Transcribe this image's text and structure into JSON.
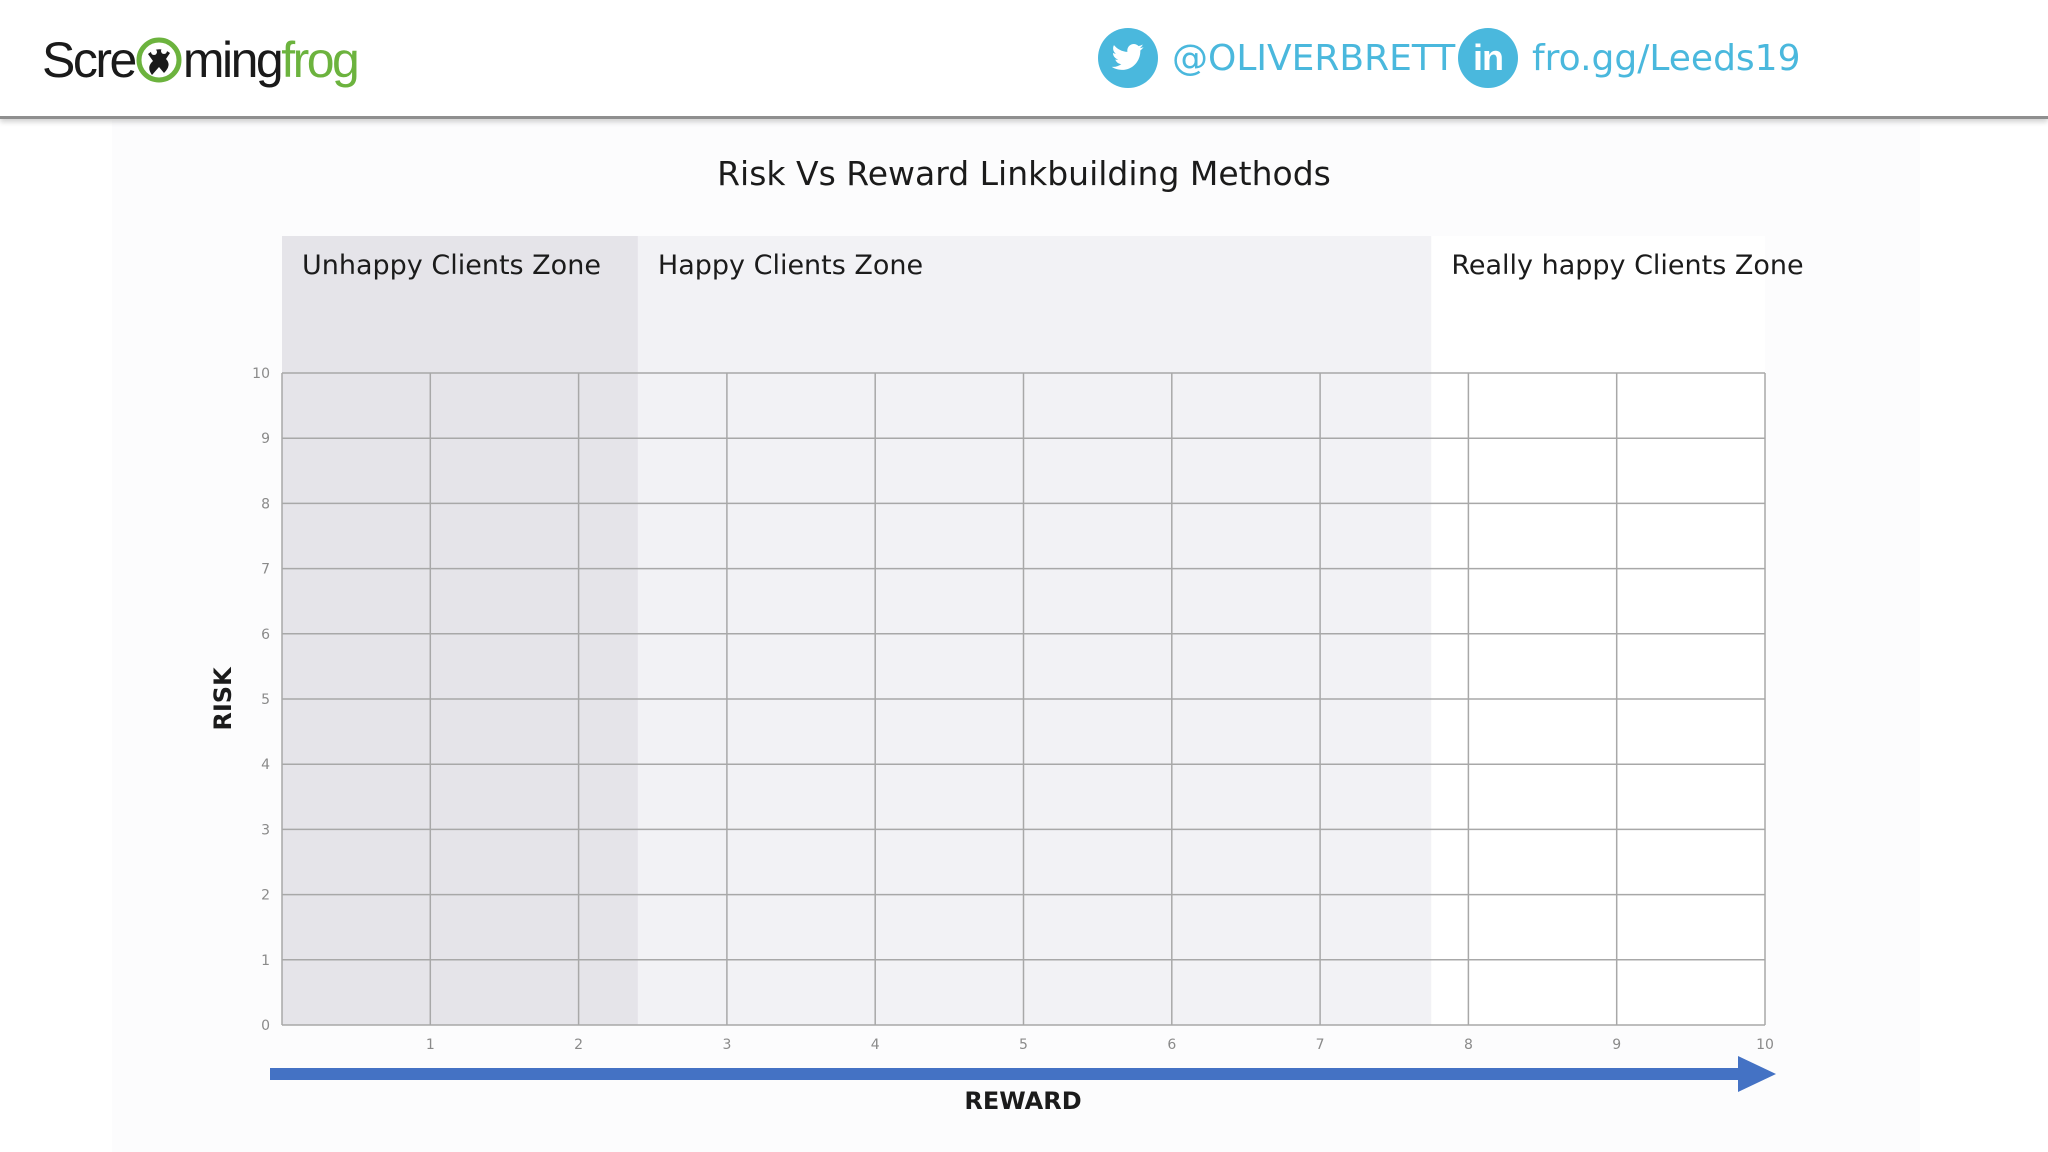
{
  "header": {
    "logo_text_a": "Scre",
    "logo_text_b": "ming",
    "logo_text_c": "frog",
    "twitter_handle": "@OLIVERBRETT",
    "twitter_icon": "twitter-bird-icon",
    "linkedin_url": "fro.gg/Leeds19",
    "linkedin_icon": "linkedin-icon",
    "accent_color": "#4ab8dd",
    "brand_green": "#6cb33e"
  },
  "chart_data": {
    "type": "scatter",
    "title": "Risk Vs Reward Linkbuilding Methods",
    "xlabel": "REWARD",
    "ylabel": "RISK",
    "xlim": [
      0,
      10
    ],
    "ylim": [
      0,
      10
    ],
    "x_ticks": [
      "1",
      "2",
      "3",
      "4",
      "5",
      "6",
      "7",
      "8",
      "9",
      "10"
    ],
    "y_ticks": [
      "0",
      "1",
      "2",
      "3",
      "4",
      "5",
      "6",
      "7",
      "8",
      "9",
      "10"
    ],
    "grid": true,
    "series": [],
    "zones": [
      {
        "label": "Unhappy Clients Zone",
        "x_range": [
          0,
          2.4
        ],
        "color": "#e5e4e9"
      },
      {
        "label": "Happy Clients Zone",
        "x_range": [
          2.4,
          7.75
        ],
        "color": "#f2f2f5"
      },
      {
        "label": "Really happy Clients Zone",
        "x_range": [
          7.75,
          10
        ],
        "color": "#ffffff"
      }
    ],
    "axis_arrow_color": "#4472c4"
  }
}
